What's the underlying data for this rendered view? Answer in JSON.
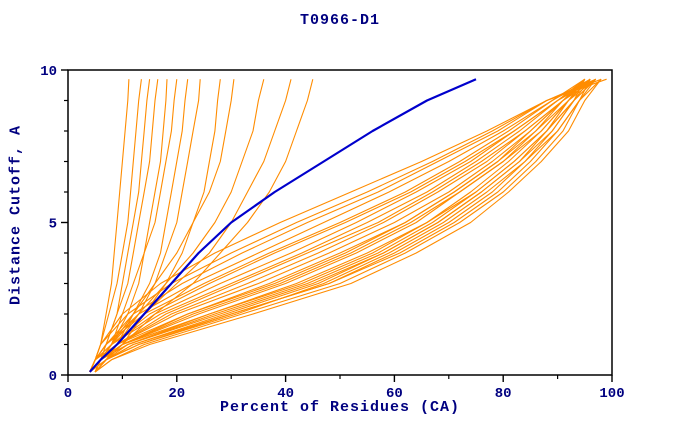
{
  "chart_data": {
    "type": "line",
    "title": "T0966-D1",
    "xlabel": "Percent of Residues (CA)",
    "ylabel": "Distance Cutoff, A",
    "xlim": [
      0,
      100
    ],
    "ylim": [
      0,
      10
    ],
    "x_ticks": [
      0,
      20,
      40,
      60,
      80,
      100
    ],
    "x_minor_step": 10,
    "y_ticks": [
      0,
      5,
      10
    ],
    "y_minor_step": 1,
    "grid": false,
    "legend": "none",
    "colors": {
      "model": "#FF8C00",
      "reference": "#0000CC",
      "text": "#000080",
      "axis": "#000000"
    },
    "y_values": [
      0.1,
      0.5,
      1,
      2,
      3,
      4,
      5,
      6,
      7,
      8,
      9,
      9.7
    ],
    "series": [
      {
        "color": "orange",
        "x": [
          4,
          5,
          6,
          7,
          8,
          8.5,
          9,
          9.5,
          10,
          10.5,
          11,
          11.2
        ]
      },
      {
        "color": "orange",
        "x": [
          4,
          5,
          6,
          7.5,
          9,
          10,
          11,
          11.5,
          12,
          12.5,
          13,
          13.5
        ]
      },
      {
        "color": "orange",
        "x": [
          5,
          6,
          7,
          9,
          10,
          11,
          12,
          13,
          13.5,
          14,
          14.5,
          15
        ]
      },
      {
        "color": "orange",
        "x": [
          4,
          5,
          7,
          9,
          11,
          12,
          13,
          14,
          15,
          15.5,
          16,
          16.5
        ]
      },
      {
        "color": "orange",
        "x": [
          5,
          6,
          8,
          11,
          13,
          14,
          15,
          16,
          17,
          17.5,
          18,
          18.2
        ]
      },
      {
        "color": "orange",
        "x": [
          4,
          6,
          8,
          10,
          12,
          14,
          16,
          17,
          18,
          19,
          19.5,
          20
        ]
      },
      {
        "color": "orange",
        "x": [
          5,
          7,
          9,
          12,
          15,
          17,
          18,
          19,
          20,
          21,
          21.5,
          22
        ]
      },
      {
        "color": "orange",
        "x": [
          4,
          6,
          9,
          13,
          16,
          18,
          20,
          21,
          22,
          23,
          24,
          24.3
        ]
      },
      {
        "color": "orange",
        "x": [
          5,
          7,
          10,
          14,
          18,
          21,
          23,
          25,
          26,
          27,
          27.5,
          28
        ]
      },
      {
        "color": "orange",
        "x": [
          4,
          6,
          8,
          12,
          16,
          20,
          23,
          26,
          28,
          29,
          30,
          30.5
        ]
      },
      {
        "color": "orange",
        "x": [
          4,
          6,
          8,
          13,
          18,
          23,
          27,
          30,
          32,
          34,
          35,
          36
        ]
      },
      {
        "color": "orange",
        "x": [
          4,
          6,
          9,
          14,
          20,
          26,
          30,
          33,
          36,
          38,
          40,
          41
        ]
      },
      {
        "color": "orange",
        "x": [
          5,
          7,
          10,
          16,
          23,
          28,
          33,
          37,
          40,
          42,
          44,
          45
        ]
      },
      {
        "color": "orange",
        "x": [
          4,
          7,
          12,
          30,
          48,
          60,
          70,
          78,
          84,
          89,
          93,
          95
        ]
      },
      {
        "color": "orange",
        "x": [
          5,
          8,
          14,
          32,
          50,
          62,
          72,
          80,
          86,
          91,
          94,
          96
        ]
      },
      {
        "color": "orange",
        "x": [
          4,
          6,
          11,
          28,
          45,
          58,
          68,
          76,
          83,
          88,
          92,
          95
        ]
      },
      {
        "color": "orange",
        "x": [
          5,
          7,
          13,
          31,
          47,
          59,
          69,
          77,
          84,
          90,
          94,
          97
        ]
      },
      {
        "color": "orange",
        "x": [
          4,
          6,
          10,
          26,
          43,
          56,
          66,
          74,
          81,
          87,
          92,
          96
        ]
      },
      {
        "color": "orange",
        "x": [
          5,
          8,
          15,
          34,
          52,
          64,
          74,
          81,
          87,
          92,
          95,
          98
        ]
      },
      {
        "color": "orange",
        "x": [
          4,
          7,
          12,
          29,
          46,
          58,
          68,
          76,
          83,
          89,
          93,
          97
        ]
      },
      {
        "color": "orange",
        "x": [
          5,
          6,
          11,
          27,
          44,
          57,
          67,
          75,
          82,
          88,
          93,
          96
        ]
      },
      {
        "color": "orange",
        "x": [
          4,
          6,
          10,
          24,
          40,
          53,
          64,
          72,
          80,
          86,
          91,
          95
        ]
      },
      {
        "color": "orange",
        "x": [
          5,
          7,
          13,
          30,
          48,
          61,
          71,
          79,
          85,
          90,
          94,
          98
        ]
      },
      {
        "color": "orange",
        "x": [
          4,
          6,
          9,
          22,
          38,
          51,
          62,
          71,
          79,
          85,
          91,
          95
        ]
      },
      {
        "color": "orange",
        "x": [
          5,
          7,
          11,
          26,
          42,
          55,
          66,
          75,
          82,
          88,
          93,
          97
        ]
      },
      {
        "color": "orange",
        "x": [
          4,
          6,
          10,
          23,
          39,
          52,
          63,
          72,
          80,
          87,
          92,
          96
        ]
      },
      {
        "color": "orange",
        "x": [
          4,
          5,
          9,
          20,
          35,
          48,
          60,
          70,
          78,
          85,
          91,
          96
        ]
      },
      {
        "color": "orange",
        "x": [
          5,
          6,
          10,
          22,
          37,
          50,
          62,
          71,
          79,
          86,
          92,
          97
        ]
      },
      {
        "color": "orange",
        "x": [
          4,
          6,
          9,
          19,
          33,
          46,
          58,
          68,
          77,
          84,
          91,
          96
        ]
      },
      {
        "color": "orange",
        "x": [
          4,
          5,
          8,
          17,
          30,
          43,
          55,
          66,
          75,
          83,
          90,
          95
        ]
      },
      {
        "color": "orange",
        "x": [
          5,
          6,
          9,
          18,
          31,
          44,
          57,
          67,
          76,
          84,
          91,
          97
        ]
      },
      {
        "color": "orange",
        "x": [
          4,
          5,
          8,
          16,
          28,
          41,
          53,
          64,
          74,
          82,
          90,
          96
        ]
      },
      {
        "color": "orange",
        "x": [
          4,
          5,
          7,
          14,
          25,
          37,
          50,
          62,
          72,
          81,
          89,
          95
        ]
      },
      {
        "color": "orange",
        "x": [
          5,
          6,
          8,
          15,
          26,
          38,
          51,
          63,
          73,
          82,
          90,
          97
        ]
      },
      {
        "color": "orange",
        "x": [
          4,
          5,
          7,
          13,
          23,
          35,
          47,
          59,
          70,
          80,
          89,
          96
        ]
      },
      {
        "color": "orange",
        "x": [
          4,
          5,
          7,
          12,
          21,
          32,
          44,
          57,
          68,
          79,
          88,
          97
        ]
      },
      {
        "color": "orange",
        "x": [
          4,
          5,
          6,
          11,
          19,
          30,
          42,
          55,
          67,
          78,
          88,
          98
        ]
      },
      {
        "color": "orange",
        "x": [
          4,
          5,
          6,
          10,
          17,
          27,
          39,
          52,
          65,
          77,
          88,
          99
        ]
      },
      {
        "color": "blue",
        "x": [
          4,
          6,
          9,
          14,
          19,
          24,
          30,
          38,
          47,
          56,
          66,
          75
        ]
      }
    ]
  }
}
